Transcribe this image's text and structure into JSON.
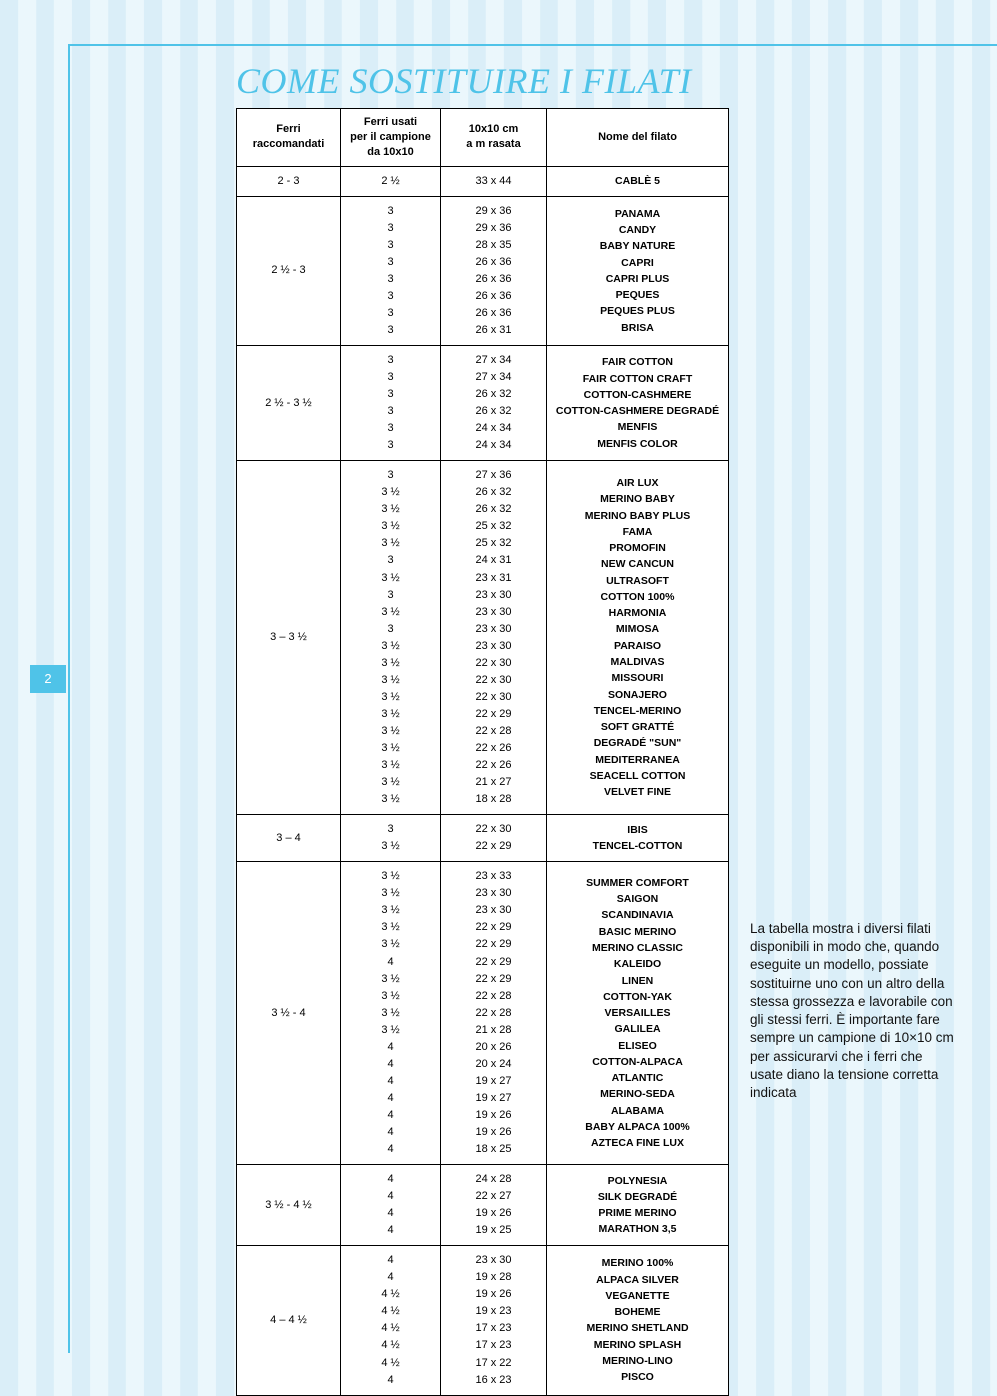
{
  "page_number": "2",
  "title": "COME SOSTITUIRE I FILATI",
  "headers": {
    "col0": "Ferri\nraccomandati",
    "col1": "Ferri usati\nper il campione\nda 10x10",
    "col2": "10x10 cm\na m rasata",
    "col3": "Nome del filato"
  },
  "groups": [
    {
      "rec": "2 - 3",
      "rows": [
        {
          "used": "2 ½",
          "gauge": "33 x 44",
          "name": "CABLÈ 5"
        }
      ]
    },
    {
      "rec": "2 ½ - 3",
      "rows": [
        {
          "used": "3",
          "gauge": "29 x 36",
          "name": "PANAMA"
        },
        {
          "used": "3",
          "gauge": "29 x 36",
          "name": "CANDY"
        },
        {
          "used": "3",
          "gauge": "28 x 35",
          "name": "BABY NATURE"
        },
        {
          "used": "3",
          "gauge": "26 x 36",
          "name": "CAPRI"
        },
        {
          "used": "3",
          "gauge": "26 x 36",
          "name": "CAPRI PLUS"
        },
        {
          "used": "3",
          "gauge": "26 x 36",
          "name": "PEQUES"
        },
        {
          "used": "3",
          "gauge": "26 x 36",
          "name": "PEQUES PLUS"
        },
        {
          "used": "3",
          "gauge": "26 x 31",
          "name": "BRISA"
        }
      ]
    },
    {
      "rec": "2 ½ - 3 ½",
      "rows": [
        {
          "used": "3",
          "gauge": "27 x 34",
          "name": "FAIR COTTON"
        },
        {
          "used": "3",
          "gauge": "27 x 34",
          "name": "FAIR COTTON CRAFT"
        },
        {
          "used": "3",
          "gauge": "26 x 32",
          "name": "COTTON-CASHMERE"
        },
        {
          "used": "3",
          "gauge": "26 x 32",
          "name": "COTTON-CASHMERE DEGRADÉ"
        },
        {
          "used": "3",
          "gauge": "24 x 34",
          "name": "MENFIS"
        },
        {
          "used": "3",
          "gauge": "24 x 34",
          "name": "MENFIS COLOR"
        }
      ]
    },
    {
      "rec": "3 – 3 ½",
      "rows": [
        {
          "used": "3",
          "gauge": "27 x 36",
          "name": "AIR LUX"
        },
        {
          "used": "3 ½",
          "gauge": "26 x 32",
          "name": "MERINO BABY"
        },
        {
          "used": "3 ½",
          "gauge": "26 x 32",
          "name": "MERINO BABY PLUS"
        },
        {
          "used": "3 ½",
          "gauge": "25 x 32",
          "name": "FAMA"
        },
        {
          "used": "3 ½",
          "gauge": "25 x 32",
          "name": "PROMOFIN"
        },
        {
          "used": "3",
          "gauge": "24 x 31",
          "name": "NEW CANCUN"
        },
        {
          "used": "3 ½",
          "gauge": "23 x 31",
          "name": "ULTRASOFT"
        },
        {
          "used": "3",
          "gauge": "23 x 30",
          "name": "COTTON 100%"
        },
        {
          "used": "3 ½",
          "gauge": "23 x 30",
          "name": "HARMONIA"
        },
        {
          "used": "3",
          "gauge": "23 x 30",
          "name": "MIMOSA"
        },
        {
          "used": "3 ½",
          "gauge": "23 x 30",
          "name": "PARAISO"
        },
        {
          "used": "3 ½",
          "gauge": "22 x 30",
          "name": "MALDIVAS"
        },
        {
          "used": "3 ½",
          "gauge": "22 x 30",
          "name": "MISSOURI"
        },
        {
          "used": "3 ½",
          "gauge": "22 x 30",
          "name": "SONAJERO"
        },
        {
          "used": "3 ½",
          "gauge": "22 x 29",
          "name": "TENCEL-MERINO"
        },
        {
          "used": "3 ½",
          "gauge": "22 x 28",
          "name": "SOFT GRATTÉ"
        },
        {
          "used": "3 ½",
          "gauge": "22 x 26",
          "name": "DEGRADÉ \"SUN\""
        },
        {
          "used": "3 ½",
          "gauge": "22 x 26",
          "name": "MEDITERRANEA"
        },
        {
          "used": "3 ½",
          "gauge": "21 x 27",
          "name": "SEACELL COTTON"
        },
        {
          "used": "3 ½",
          "gauge": "18 x 28",
          "name": "VELVET FINE"
        }
      ]
    },
    {
      "rec": "3 – 4",
      "rows": [
        {
          "used": "3",
          "gauge": "22 x 30",
          "name": "IBIS"
        },
        {
          "used": "3 ½",
          "gauge": "22 x 29",
          "name": "TENCEL-COTTON"
        }
      ]
    },
    {
      "rec": "3 ½ - 4",
      "rows": [
        {
          "used": "3 ½",
          "gauge": "23 x 33",
          "name": "SUMMER COMFORT"
        },
        {
          "used": "3 ½",
          "gauge": "23 x 30",
          "name": "SAIGON"
        },
        {
          "used": "3 ½",
          "gauge": "23 x 30",
          "name": "SCANDINAVIA"
        },
        {
          "used": "3 ½",
          "gauge": "22 x 29",
          "name": "BASIC MERINO"
        },
        {
          "used": "3 ½",
          "gauge": "22 x 29",
          "name": "MERINO CLASSIC"
        },
        {
          "used": "4",
          "gauge": "22 x 29",
          "name": "KALEIDO"
        },
        {
          "used": "3 ½",
          "gauge": "22 x 29",
          "name": "LINEN"
        },
        {
          "used": "3 ½",
          "gauge": "22 x 28",
          "name": "COTTON-YAK"
        },
        {
          "used": "3 ½",
          "gauge": "22 x 28",
          "name": "VERSAILLES"
        },
        {
          "used": "3 ½",
          "gauge": "21 x 28",
          "name": "GALILEA"
        },
        {
          "used": "4",
          "gauge": "20 x 26",
          "name": "ELISEO"
        },
        {
          "used": "4",
          "gauge": "20 x 24",
          "name": "COTTON-ALPACA"
        },
        {
          "used": "4",
          "gauge": "19 x 27",
          "name": "ATLANTIC"
        },
        {
          "used": "4",
          "gauge": "19 x 27",
          "name": "MERINO-SEDA"
        },
        {
          "used": "4",
          "gauge": "19 x 26",
          "name": "ALABAMA"
        },
        {
          "used": "4",
          "gauge": "19 x 26",
          "name": "BABY ALPACA 100%"
        },
        {
          "used": "4",
          "gauge": "18 x 25",
          "name": "AZTECA FINE LUX"
        }
      ]
    },
    {
      "rec": "3 ½ - 4 ½",
      "rows": [
        {
          "used": "4",
          "gauge": "24 x 28",
          "name": "POLYNESIA"
        },
        {
          "used": "4",
          "gauge": "22 x 27",
          "name": "SILK DEGRADÉ"
        },
        {
          "used": "4",
          "gauge": "19 x 26",
          "name": "PRIME MERINO"
        },
        {
          "used": "4",
          "gauge": "19 x 25",
          "name": "MARATHON 3,5"
        }
      ]
    },
    {
      "rec": "4 – 4 ½",
      "rows": [
        {
          "used": "4",
          "gauge": "23 x 30",
          "name": "MERINO 100%"
        },
        {
          "used": "4",
          "gauge": "19 x 28",
          "name": "ALPACA SILVER"
        },
        {
          "used": "4 ½",
          "gauge": "19 x 26",
          "name": "VEGANETTE"
        },
        {
          "used": "4 ½",
          "gauge": "19 x 23",
          "name": "BOHEME"
        },
        {
          "used": "4 ½",
          "gauge": "17 x 23",
          "name": "MERINO SHETLAND"
        },
        {
          "used": "4 ½",
          "gauge": "17 x 23",
          "name": "MERINO SPLASH"
        },
        {
          "used": "4 ½",
          "gauge": "17 x 22",
          "name": "MERINO-LINO"
        },
        {
          "used": "4",
          "gauge": "16 x 23",
          "name": "PISCO"
        }
      ]
    }
  ],
  "sidebar_text": "La tabella mostra i diversi filati disponibili in modo che, quando eseguite un modello, possiate sostituirne uno con un altro della stessa grossezza e lavorabile con gli stessi ferri. È importante fare sempre un campione di 10×10 cm per assicurarvi che i ferri che usate diano la tensione corretta indicata",
  "style": {
    "accent_color": "#4fc3e8",
    "background_color": "#eef8fc",
    "title_font": "serif-italic",
    "title_size_pt": 28,
    "body_font": "sans-serif",
    "table_border_color": "#000000",
    "table_font_size_pt": 8.5,
    "sidebar_font_size_pt": 10
  }
}
